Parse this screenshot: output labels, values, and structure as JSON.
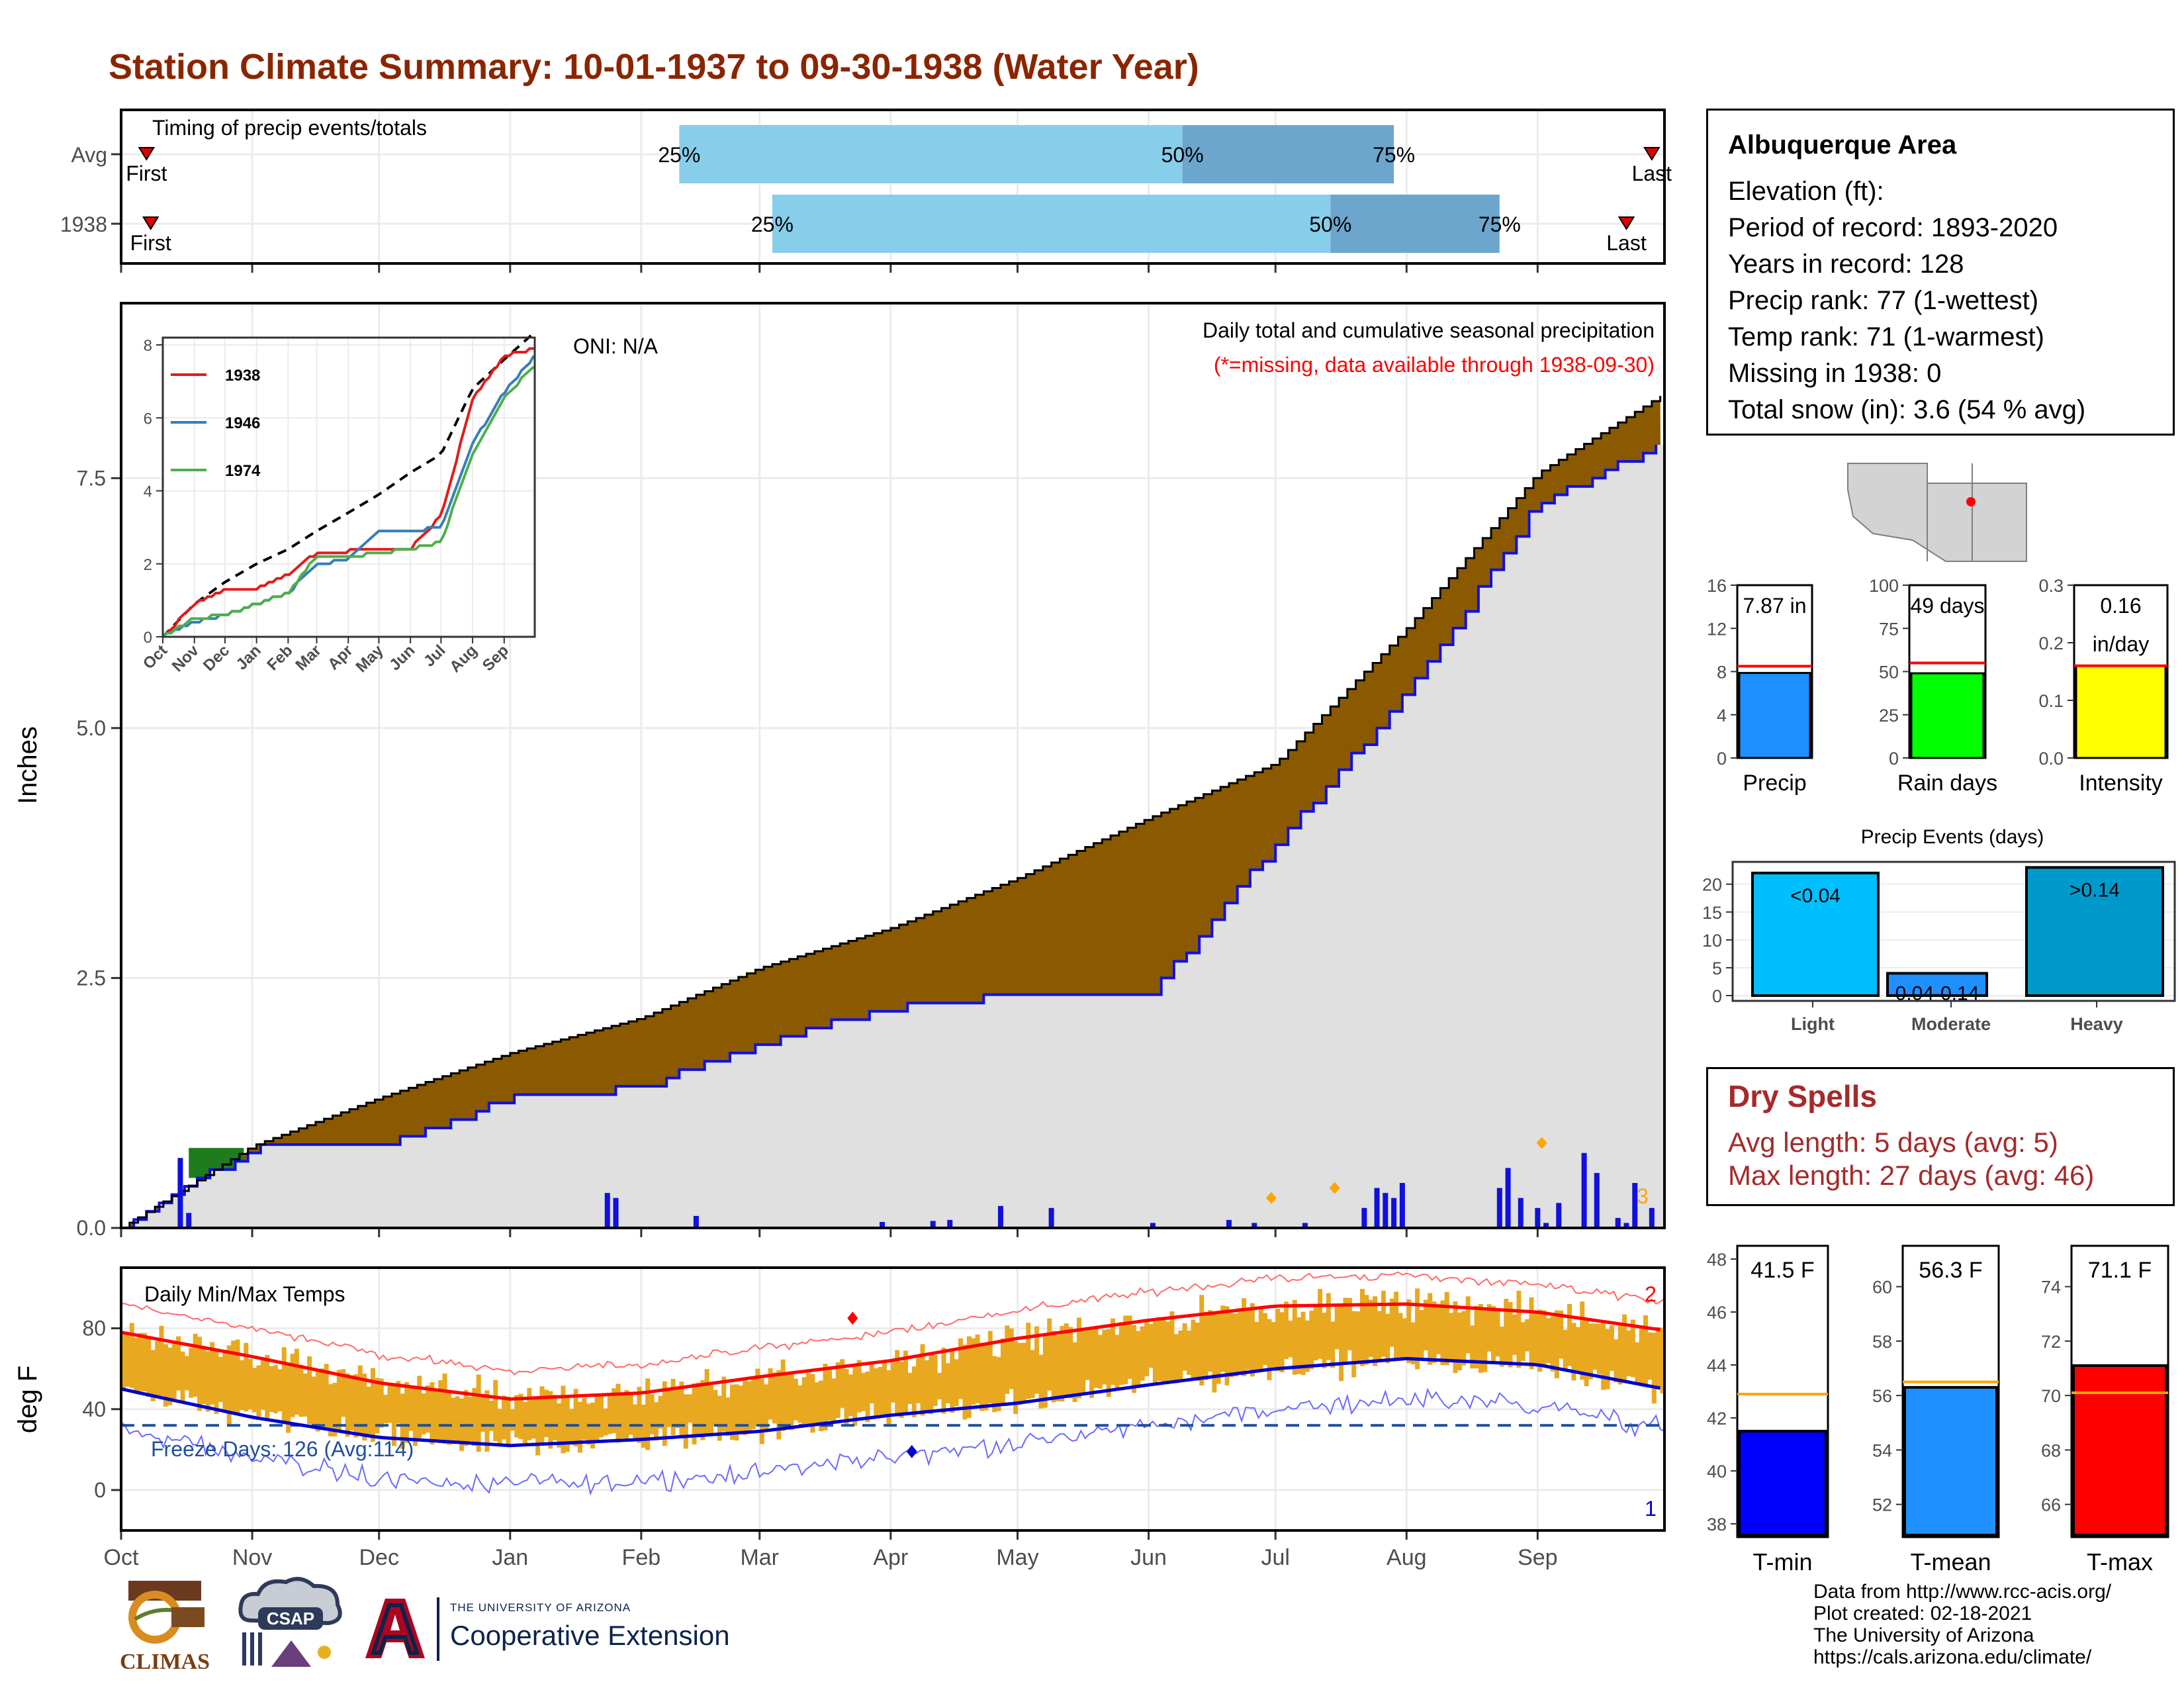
{
  "title": "Station Climate Summary: 10-01-1937 to 09-30-1938 (Water Year)",
  "colors": {
    "title": "#8B2500",
    "cum_fill": "#8B5A00",
    "cum_fill_wetter": "#1E7B1E",
    "avg_area": "#E0E0E0",
    "avg_line": "#1010E0",
    "daily_bar": "#1010E0",
    "temp_bar": "#E8A820",
    "tmax_line": "#FF0000",
    "tmin_line": "#0000CC",
    "freeze_line": "#1F4E9C",
    "dry_spells": "#A52A2A",
    "timing_light": "#87CEEB",
    "timing_dark": "#6CA6CD"
  },
  "timing_panel": {
    "label": "Timing of precip events/totals",
    "rows": [
      {
        "name": "Avg",
        "first_label": "First",
        "last_label": "Last",
        "first_day": 6,
        "last_day": 362,
        "p25": 132,
        "p50": 251,
        "p75": 301,
        "p25_label": "25%",
        "p50_label": "50%",
        "p75_label": "75%"
      },
      {
        "name": "1938",
        "first_label": "First",
        "last_label": "Last",
        "first_day": 7,
        "last_day": 356,
        "p25": 154,
        "p50": 286,
        "p75": 326,
        "p25_label": "25%",
        "p50_label": "50%",
        "p75_label": "75%"
      }
    ]
  },
  "precip_panel": {
    "ylabel": "Inches",
    "yticks": [
      "0.0",
      "2.5",
      "5.0",
      "7.5"
    ],
    "oni": "ONI: N/A",
    "caption": "Daily total and cumulative seasonal precipitation",
    "missing_note": "(*=missing, data available through 1938-09-30)",
    "corner_num": "3"
  },
  "month_labels": [
    "Oct",
    "Nov",
    "Dec",
    "Jan",
    "Feb",
    "Mar",
    "Apr",
    "May",
    "Jun",
    "Jul",
    "Aug",
    "Sep"
  ],
  "inset": {
    "yticks": [
      "0",
      "2",
      "4",
      "6",
      "8"
    ],
    "xticks": [
      "Oct",
      "Nov",
      "Dec",
      "Jan",
      "Feb",
      "Mar",
      "Apr",
      "May",
      "Jun",
      "Jul",
      "Aug",
      "Sep"
    ],
    "legend": [
      {
        "name": "1938",
        "color": "#E41A1C"
      },
      {
        "name": "1946",
        "color": "#377EB8"
      },
      {
        "name": "1974",
        "color": "#4DAF4A"
      }
    ]
  },
  "temp_panel": {
    "ylabel": "deg F",
    "label": "Daily Min/Max Temps",
    "yticks": [
      "0",
      "40",
      "80"
    ],
    "freeze_label": "Freeze Days: 126 (Avg:114)",
    "corner_top": "2",
    "corner_bottom": "1"
  },
  "station": {
    "name": "Albuquerque Area",
    "elevation": "Elevation (ft):",
    "period": "Period of record: 1893-2020",
    "years": "Years in record: 128",
    "precip_rank": "Precip rank: 77 (1-wettest)",
    "temp_rank": "Temp rank: 71 (1-warmest)",
    "missing": "Missing in 1938: 0",
    "snow": "Total snow (in): 3.6 (54 % avg)"
  },
  "mini_bars": [
    {
      "label": "Precip",
      "value_text": "7.87 in",
      "value": 7.87,
      "avg": 8.5,
      "ymax": 16,
      "ticks": [
        "0",
        "4",
        "8",
        "12",
        "16"
      ],
      "color": "#1E90FF"
    },
    {
      "label": "Rain days",
      "value_text": "49 days",
      "value": 49,
      "avg": 55,
      "ymax": 100,
      "ticks": [
        "0",
        "25",
        "50",
        "75",
        "100"
      ],
      "color": "#00FF00"
    },
    {
      "label": "Intensity",
      "value_text": "0.16",
      "value_text2": "in/day",
      "value": 0.16,
      "avg": 0.16,
      "ymax": 0.3,
      "ticks": [
        "0.0",
        "0.1",
        "0.2",
        "0.3"
      ],
      "color": "#FFFF00"
    }
  ],
  "events": {
    "title": "Precip Events (days)",
    "bars": [
      {
        "label": "Light",
        "value_text": "<0.04",
        "value": 22,
        "color": "#00BFFF"
      },
      {
        "label": "Moderate",
        "value_text": "0.04-0.14",
        "value": 4,
        "color": "#1E90FF"
      },
      {
        "label": "Heavy",
        "value_text": ">0.14",
        "value": 23,
        "color": "#0099CC"
      }
    ],
    "ticks": [
      "0",
      "5",
      "10",
      "15",
      "20"
    ]
  },
  "dry_spells": {
    "title": "Dry Spells",
    "avg": "Avg length: 5 days (avg: 5)",
    "max": "Max length: 27 days (avg: 46)"
  },
  "temp_bars": [
    {
      "label": "T-min",
      "value_text": "41.5 F",
      "value": 41.5,
      "avg": 42.9,
      "ymin": 37.5,
      "ymax": 48.5,
      "ticks": [
        "38",
        "40",
        "42",
        "44",
        "46",
        "48"
      ],
      "color": "#0000FF"
    },
    {
      "label": "T-mean",
      "value_text": "56.3 F",
      "value": 56.3,
      "avg": 56.5,
      "ymin": 50.8,
      "ymax": 61.5,
      "ticks": [
        "52",
        "54",
        "56",
        "58",
        "60"
      ],
      "color": "#1E90FF"
    },
    {
      "label": "T-max",
      "value_text": "71.1 F",
      "value": 71.1,
      "avg": 70.1,
      "ymin": 64.8,
      "ymax": 75.5,
      "ticks": [
        "66",
        "68",
        "70",
        "72",
        "74"
      ],
      "color": "#FF0000"
    }
  ],
  "footer": {
    "l1": "Data from http://www.rcc-acis.org/",
    "l2": "Plot created: 02-18-2021",
    "l3": "The University of Arizona",
    "l4": "https://cals.arizona.edu/climate/"
  },
  "logos": {
    "climas": "CLIMAS",
    "csap": "CSAP",
    "ua_small": "THE UNIVERSITY OF ARIZONA",
    "ua_big": "Cooperative Extension"
  },
  "chart_data": [
    {
      "type": "bar",
      "title": "Timing of precip events/totals",
      "categories": [
        "Avg",
        "1938"
      ],
      "series": [
        {
          "name": "25%",
          "values": [
            132,
            154
          ]
        },
        {
          "name": "50%",
          "values": [
            251,
            286
          ]
        },
        {
          "name": "75%",
          "values": [
            301,
            326
          ]
        }
      ]
    },
    {
      "type": "area",
      "title": "Daily total and cumulative seasonal precipitation",
      "ylabel": "Inches",
      "ylim": [
        0,
        9.0
      ],
      "x": [
        "Oct",
        "Nov",
        "Dec",
        "Jan",
        "Feb",
        "Mar",
        "Apr",
        "May",
        "Jun",
        "Jul",
        "Aug",
        "Sep",
        "end"
      ],
      "series": [
        {
          "name": "",
          "values": [
            0.0,
            0.82,
            1.3,
            1.75,
            2.1,
            2.6,
            3.0,
            3.5,
            4.1,
            4.65,
            6.0,
            7.55,
            8.35
          ]
        },
        {
          "name": "",
          "values": [
            0.0,
            0.8,
            0.8,
            1.3,
            1.4,
            1.85,
            2.2,
            2.33,
            2.33,
            3.85,
            5.35,
            7.25,
            7.87
          ]
        }
      ]
    },
    {
      "type": "line",
      "title": "Daily Min/Max Temps",
      "ylabel": "deg F",
      "ylim": [
        -15,
        110
      ],
      "x": [
        "Oct",
        "Nov",
        "Dec",
        "Jan",
        "Feb",
        "Mar",
        "Apr",
        "May",
        "Jun",
        "Jul",
        "Aug",
        "Sep",
        "end"
      ],
      "series": [
        {
          "name": "",
          "values": [
            78,
            66,
            53,
            45,
            48,
            56,
            64,
            75,
            84,
            91,
            92,
            88,
            79
          ]
        },
        {
          "name": "",
          "values": [
            50,
            36,
            26,
            22,
            25,
            29,
            37,
            43,
            52,
            60,
            65,
            62,
            50
          ]
        }
      ]
    }
  ]
}
